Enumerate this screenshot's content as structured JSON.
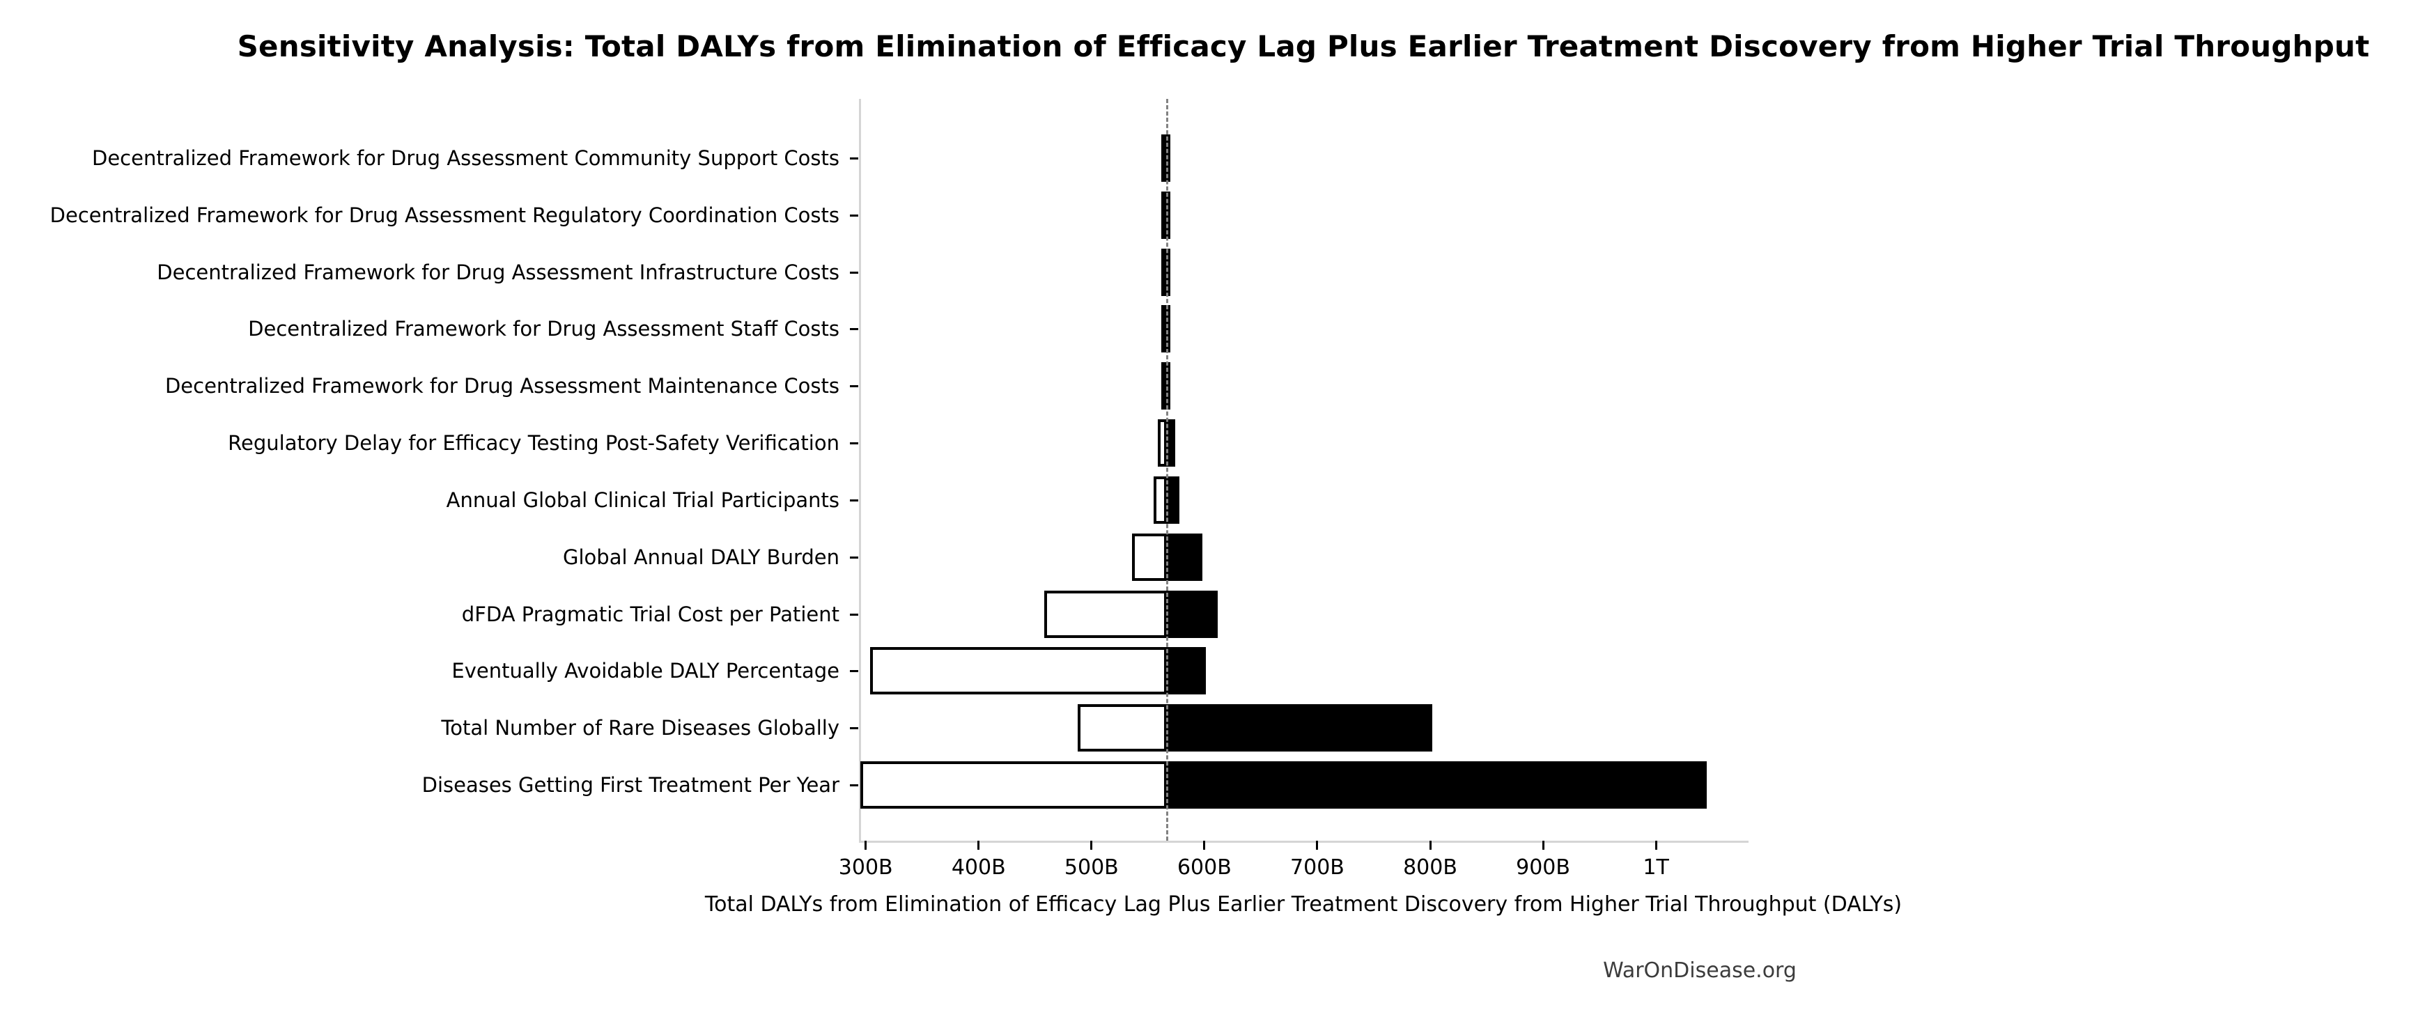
{
  "watermark": "WarOnDisease.org",
  "colors": {
    "bar_high_fill": "#000000",
    "bar_low_fill": "#ffffff",
    "bar_outline": "#000000",
    "baseline_line": "#828282",
    "axis_spine": "#d5d5d5",
    "tick_mark": "#000000",
    "text": "#000000",
    "watermark_text": "#3c3c3c"
  },
  "chart_data": {
    "type": "bar",
    "subtype": "tornado-sensitivity",
    "orientation": "horizontal",
    "title": "Sensitivity Analysis: Total DALYs from Elimination of Efficacy Lag Plus Earlier Treatment Discovery from Higher Trial Throughput",
    "xlabel": "Total DALYs from Elimination of Efficacy Lag Plus Earlier Treatment Discovery from Higher Trial Throughput (DALYs)",
    "grid": false,
    "legend": false,
    "xlim_billions": [
      294,
      1082
    ],
    "baseline_billions": 567,
    "x_ticks": [
      {
        "value_billions": 300,
        "label": "300B"
      },
      {
        "value_billions": 400,
        "label": "400B"
      },
      {
        "value_billions": 500,
        "label": "500B"
      },
      {
        "value_billions": 600,
        "label": "600B"
      },
      {
        "value_billions": 700,
        "label": "700B"
      },
      {
        "value_billions": 800,
        "label": "800B"
      },
      {
        "value_billions": 900,
        "label": "900B"
      },
      {
        "value_billions": 1000,
        "label": "1T"
      }
    ],
    "rows": [
      {
        "label": "Decentralized Framework for Drug Assessment Community Support Costs",
        "low_billions": 565,
        "high_billions": 570
      },
      {
        "label": "Decentralized Framework for Drug Assessment Regulatory Coordination Costs",
        "low_billions": 565,
        "high_billions": 570
      },
      {
        "label": "Decentralized Framework for Drug Assessment Infrastructure Costs",
        "low_billions": 565,
        "high_billions": 570
      },
      {
        "label": "Decentralized Framework for Drug Assessment Staff Costs",
        "low_billions": 565,
        "high_billions": 570
      },
      {
        "label": "Decentralized Framework for Drug Assessment Maintenance Costs",
        "low_billions": 565,
        "high_billions": 570
      },
      {
        "label": "Regulatory Delay for Efficacy Testing Post-Safety Verification",
        "low_billions": 559,
        "high_billions": 574
      },
      {
        "label": "Annual Global Clinical Trial Participants",
        "low_billions": 555,
        "high_billions": 578
      },
      {
        "label": "Global Annual DALY Burden",
        "low_billions": 536,
        "high_billions": 598
      },
      {
        "label": "dFDA Pragmatic Trial Cost per Patient",
        "low_billions": 458,
        "high_billions": 612
      },
      {
        "label": "Eventually Avoidable DALY Percentage",
        "low_billions": 304,
        "high_billions": 601
      },
      {
        "label": "Total Number of Rare Diseases Globally",
        "low_billions": 488,
        "high_billions": 802
      },
      {
        "label": "Diseases Getting First Treatment Per Year",
        "low_billions": 295,
        "high_billions": 1045
      }
    ]
  }
}
